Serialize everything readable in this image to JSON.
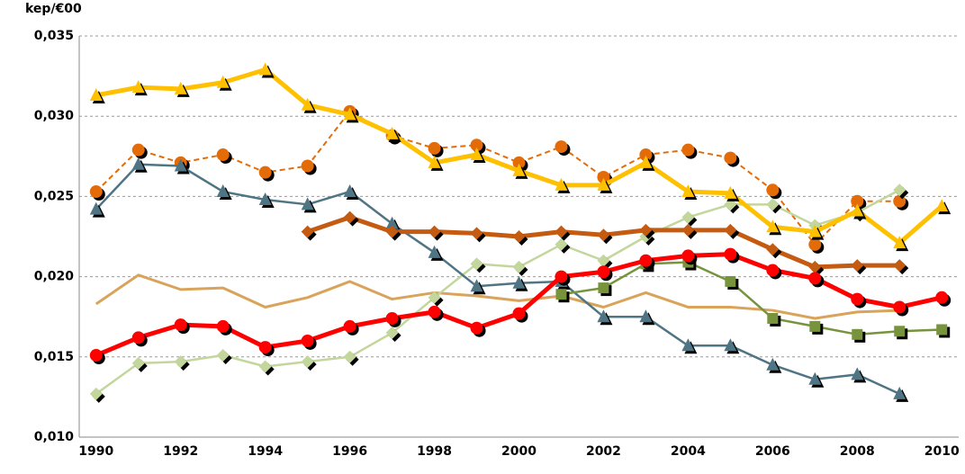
{
  "chart_data": {
    "type": "line",
    "y_label": "kep/€00",
    "x": [
      1990,
      1991,
      1992,
      1993,
      1994,
      1995,
      1996,
      1997,
      1998,
      1999,
      2000,
      2001,
      2002,
      2003,
      2004,
      2005,
      2006,
      2007,
      2008,
      2009,
      2010
    ],
    "xlim": [
      1989.6,
      2010.4
    ],
    "xticks": [
      1990,
      1992,
      1994,
      1996,
      1998,
      2000,
      2002,
      2004,
      2006,
      2008,
      2010
    ],
    "ylim": [
      0.01,
      0.035
    ],
    "yticks": [
      {
        "value": 0.01,
        "label": "0,010"
      },
      {
        "value": 0.015,
        "label": "0,015"
      },
      {
        "value": 0.02,
        "label": "0,020"
      },
      {
        "value": 0.025,
        "label": "0,025"
      },
      {
        "value": 0.03,
        "label": "0,030"
      },
      {
        "value": 0.035,
        "label": "0,035"
      }
    ],
    "grid": true,
    "series": [
      {
        "color": "#d9a35a",
        "width": 3,
        "marker": "none",
        "values": [
          0.0183,
          0.0201,
          0.0192,
          0.0193,
          0.0181,
          0.0187,
          0.0197,
          0.0186,
          0.019,
          0.0188,
          0.0185,
          0.0188,
          0.0181,
          0.019,
          0.0181,
          0.0181,
          0.0179,
          0.0174,
          0.0178,
          0.0179,
          null
        ]
      },
      {
        "color": "#e36c09",
        "width": 2,
        "dash": true,
        "marker": "circle",
        "values": [
          0.0253,
          0.0279,
          0.0271,
          0.0276,
          0.0265,
          0.0269,
          0.0303,
          0.0288,
          0.028,
          0.0282,
          0.0271,
          0.0281,
          0.0262,
          0.0276,
          0.0279,
          0.0274,
          0.0254,
          0.022,
          0.0247,
          0.0247,
          null
        ]
      },
      {
        "color": "#c3d69b",
        "width": 2.5,
        "marker": "diamond",
        "values": [
          0.0127,
          0.0146,
          0.0147,
          0.0151,
          0.0144,
          0.0147,
          0.015,
          0.0165,
          0.0187,
          0.0208,
          0.0206,
          0.022,
          0.021,
          0.0225,
          0.0237,
          0.0245,
          0.0245,
          0.0232,
          0.024,
          0.0254,
          null
        ]
      },
      {
        "color": "#4f7584",
        "width": 2.5,
        "marker": "triangle",
        "values": [
          0.0242,
          0.027,
          0.0269,
          0.0253,
          0.0248,
          0.0245,
          0.0253,
          0.0233,
          0.0215,
          0.0194,
          0.0196,
          0.0197,
          0.0175,
          0.0175,
          0.0157,
          0.0157,
          0.0145,
          0.0136,
          0.0139,
          0.0127,
          null
        ]
      },
      {
        "color": "#77933c",
        "width": 2.5,
        "marker": "square",
        "values": [
          null,
          null,
          null,
          null,
          null,
          null,
          null,
          null,
          null,
          null,
          null,
          0.0189,
          0.0193,
          0.0208,
          0.0209,
          0.0197,
          0.0174,
          0.0169,
          0.0164,
          0.0166,
          0.0167
        ]
      },
      {
        "color": "#c55a11",
        "width": 5,
        "marker": "diamond",
        "values": [
          null,
          null,
          null,
          null,
          null,
          0.0228,
          0.0237,
          0.0228,
          0.0228,
          0.0227,
          0.0225,
          0.0228,
          0.0226,
          0.0229,
          0.0229,
          0.0229,
          0.0217,
          0.0206,
          0.0207,
          0.0207,
          null
        ]
      },
      {
        "color": "#ffc000",
        "width": 5,
        "marker": "triangle",
        "values": [
          0.0313,
          0.0318,
          0.0317,
          0.0321,
          0.0329,
          0.0307,
          0.0301,
          0.0289,
          0.0271,
          0.0276,
          0.0266,
          0.0257,
          0.0257,
          0.0271,
          0.0253,
          0.0252,
          0.0231,
          0.0228,
          0.0241,
          0.0221,
          0.0244
        ]
      },
      {
        "color": "#ff0000",
        "width": 5,
        "marker": "circle",
        "values": [
          0.0151,
          0.0162,
          0.017,
          0.0169,
          0.0156,
          0.016,
          0.0169,
          0.0174,
          0.0178,
          0.0168,
          0.0177,
          0.02,
          0.0203,
          0.021,
          0.0213,
          0.0214,
          0.0204,
          0.0199,
          0.0186,
          0.0181,
          0.0187
        ]
      }
    ]
  }
}
